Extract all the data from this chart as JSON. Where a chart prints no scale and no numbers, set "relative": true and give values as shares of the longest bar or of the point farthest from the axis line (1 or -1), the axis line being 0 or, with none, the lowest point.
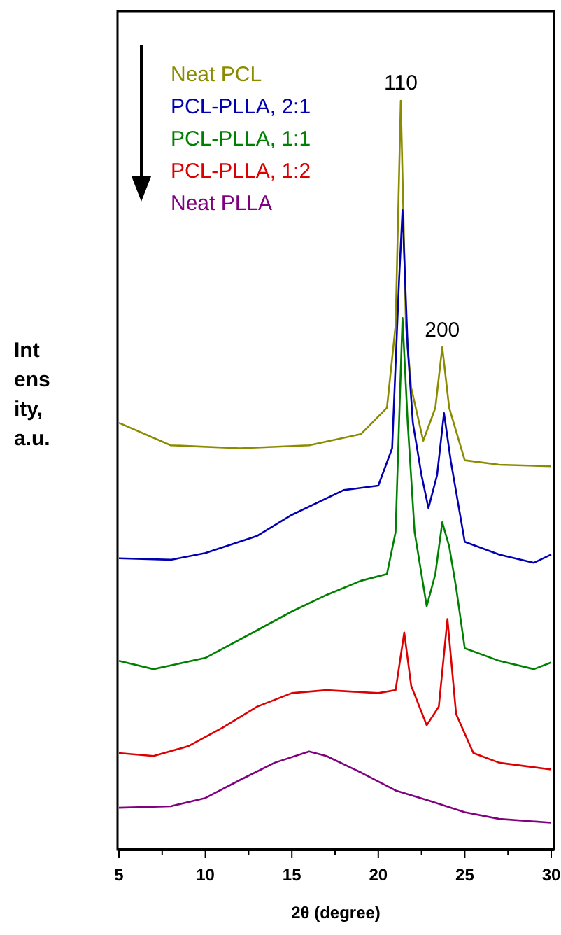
{
  "chart_data": {
    "type": "line",
    "relative": true,
    "xlabel": "2θ (degree)",
    "ylabel": "Int\nens\nity,\na.u.",
    "legend": "top left",
    "marker": "none",
    "grid": false,
    "tick_labels": "x",
    "xlim": [
      5,
      30
    ],
    "xticks": [
      5,
      {
        "value": 7.5,
        "label": null
      },
      10,
      {
        "value": 12.5,
        "label": null
      },
      15,
      {
        "value": 17.5,
        "label": null
      },
      20,
      {
        "value": 22.5,
        "label": null
      },
      25,
      {
        "value": 27.5,
        "label": null
      },
      30
    ],
    "annotations": [
      {
        "text": "110",
        "x": 21.3,
        "y": 1.0
      },
      {
        "text": "200",
        "x": 23.7,
        "y": 0.67
      }
    ],
    "series": [
      {
        "name": "Neat PCL",
        "color": "#8b8b00",
        "x": [
          5,
          8,
          12,
          16,
          19,
          20.5,
          21,
          21.3,
          21.6,
          21.9,
          22.6,
          23.3,
          23.7,
          24.1,
          25,
          27,
          30
        ],
        "values": [
          0.57,
          0.54,
          0.536,
          0.54,
          0.555,
          0.59,
          0.7,
          1.0,
          0.7,
          0.617,
          0.546,
          0.59,
          0.671,
          0.59,
          0.52,
          0.514,
          0.512
        ]
      },
      {
        "name": "PCL-PLLA, 2:1",
        "color": "#0000b0",
        "x": [
          5,
          8,
          10,
          13,
          15,
          18,
          20,
          20.8,
          21.2,
          21.4,
          21.7,
          22,
          22.5,
          22.9,
          23.4,
          23.8,
          24.2,
          25,
          27,
          29,
          30
        ],
        "values": [
          0.389,
          0.387,
          0.396,
          0.419,
          0.447,
          0.48,
          0.486,
          0.536,
          0.76,
          0.854,
          0.67,
          0.57,
          0.5,
          0.456,
          0.5,
          0.583,
          0.518,
          0.411,
          0.394,
          0.383,
          0.394
        ]
      },
      {
        "name": "PCL-PLLA, 1:1",
        "color": "#008000",
        "x": [
          5,
          7,
          10,
          13,
          15,
          17,
          19,
          20.5,
          21,
          21.2,
          21.4,
          21.7,
          22.1,
          22.8,
          23.3,
          23.7,
          24.1,
          24.5,
          25,
          27,
          29,
          30
        ],
        "values": [
          0.252,
          0.241,
          0.256,
          0.293,
          0.318,
          0.34,
          0.359,
          0.368,
          0.424,
          0.57,
          0.71,
          0.57,
          0.424,
          0.325,
          0.368,
          0.437,
          0.405,
          0.35,
          0.269,
          0.252,
          0.241,
          0.25
        ]
      },
      {
        "name": "PCL-PLLA, 1:2",
        "color": "#dd0000",
        "x": [
          5,
          7,
          9,
          11,
          13,
          15,
          17,
          20,
          21,
          21.5,
          21.9,
          22.8,
          23.5,
          24,
          24.5,
          25.5,
          27,
          30
        ],
        "values": [
          0.129,
          0.125,
          0.138,
          0.163,
          0.191,
          0.209,
          0.213,
          0.209,
          0.213,
          0.29,
          0.219,
          0.166,
          0.191,
          0.308,
          0.181,
          0.129,
          0.116,
          0.107
        ]
      },
      {
        "name": "Neat PLLA",
        "color": "#800080",
        "x": [
          5,
          8,
          10,
          12,
          14,
          16,
          17,
          19,
          21,
          23,
          25,
          27,
          30
        ],
        "values": [
          0.056,
          0.058,
          0.069,
          0.093,
          0.116,
          0.131,
          0.125,
          0.103,
          0.079,
          0.065,
          0.05,
          0.041,
          0.036
        ]
      }
    ]
  }
}
